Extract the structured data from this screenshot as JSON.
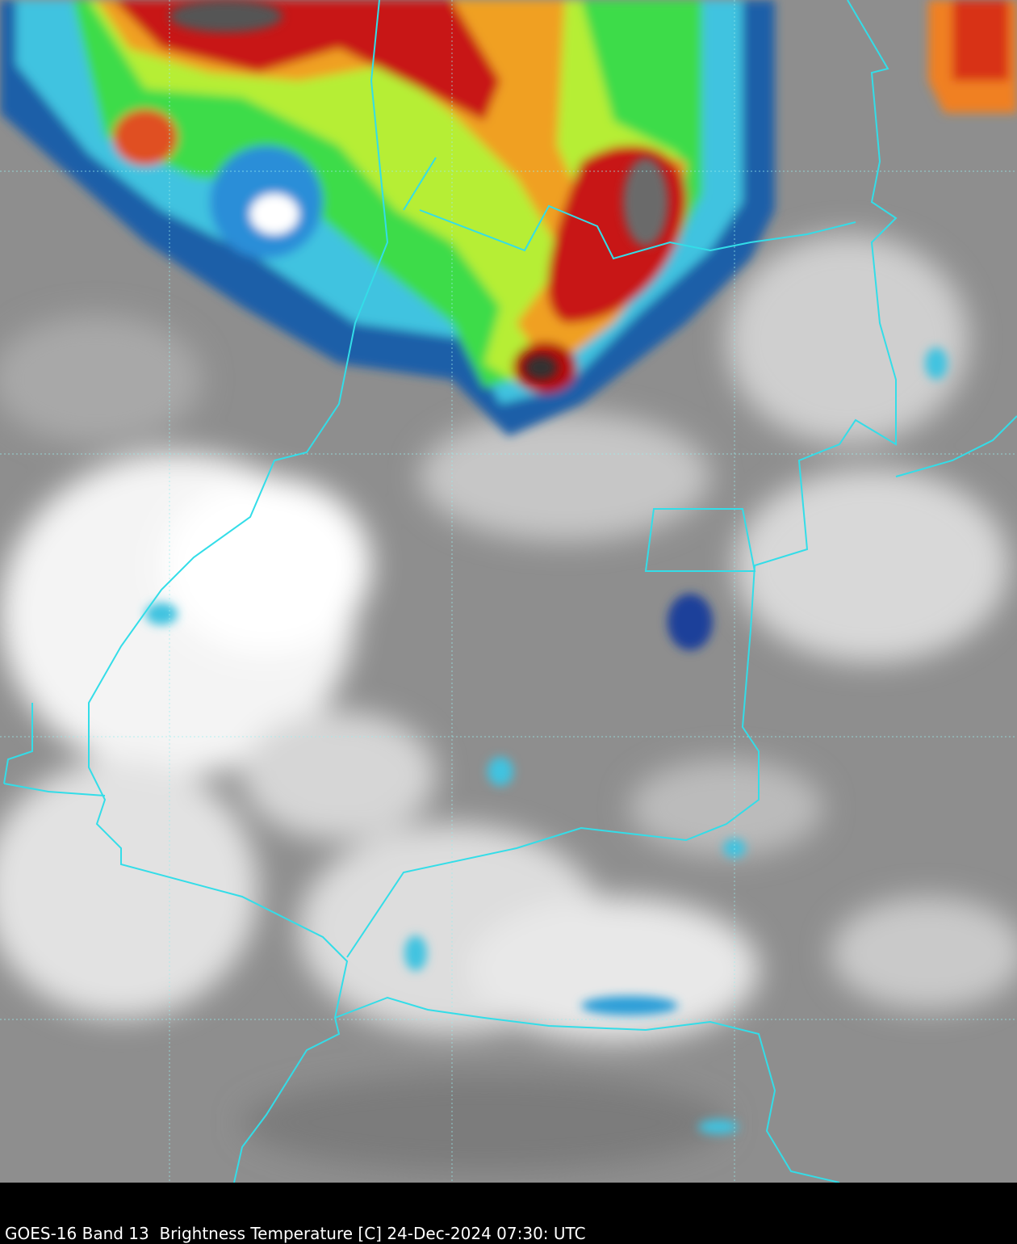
{
  "caption": "GOES-16 Band 13  Brightness Temperature [C] 24-Dec-2024 07:30: UTC"
}
